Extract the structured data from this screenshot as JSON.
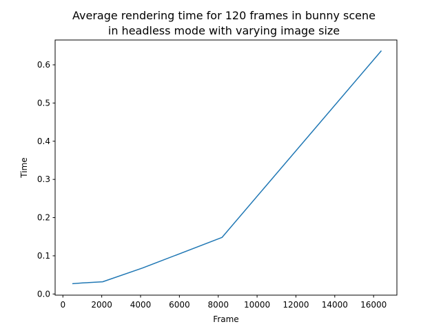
{
  "chart_data": {
    "type": "line",
    "title": [
      "Average rendering time for 120 frames in bunny scene",
      "in headless mode with varying image size"
    ],
    "xlabel": "Frame",
    "ylabel": "Time",
    "xlim": [
      -400,
      17200
    ],
    "ylim": [
      -0.003,
      0.665
    ],
    "xticks": [
      0,
      2000,
      4000,
      6000,
      8000,
      10000,
      12000,
      14000,
      16000
    ],
    "xtick_labels": [
      "0",
      "2000",
      "4000",
      "6000",
      "8000",
      "10000",
      "12000",
      "14000",
      "16000"
    ],
    "yticks": [
      0.0,
      0.1,
      0.2,
      0.3,
      0.4,
      0.5,
      0.6
    ],
    "ytick_labels": [
      "0.0",
      "0.1",
      "0.2",
      "0.3",
      "0.4",
      "0.5",
      "0.6"
    ],
    "grid": false,
    "series": [
      {
        "color": "#1f77b4",
        "x": [
          512,
          1024,
          2048,
          4096,
          8192,
          16384
        ],
        "y": [
          0.027,
          0.029,
          0.032,
          0.068,
          0.148,
          0.636
        ]
      }
    ]
  }
}
